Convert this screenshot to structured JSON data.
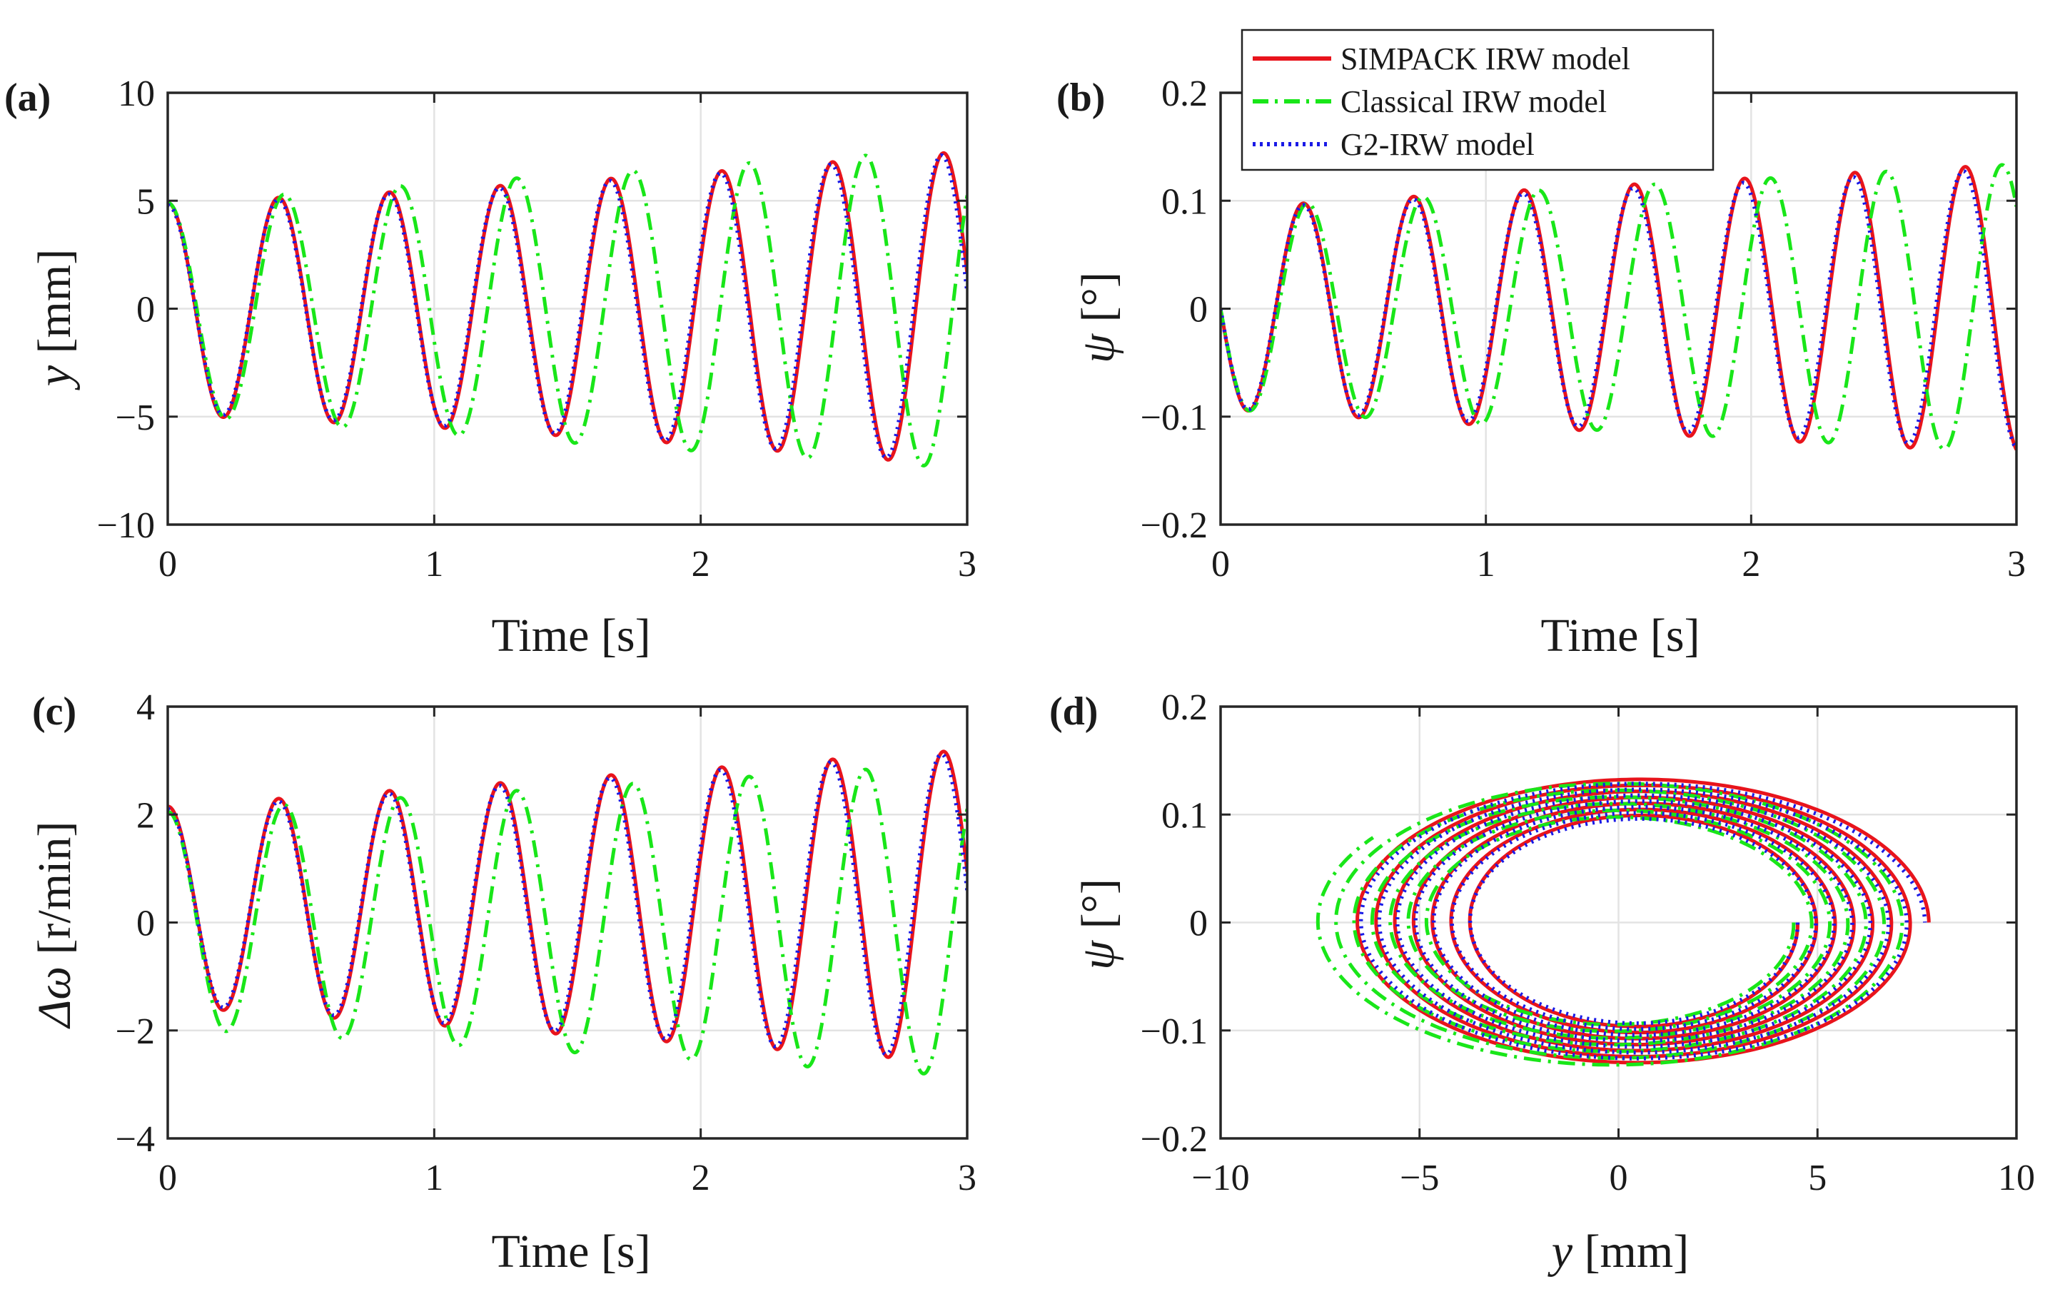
{
  "chart_data": [
    {
      "type": "line",
      "panel_label": "(a)",
      "xlabel": "Time [s]",
      "ylabel_italic": "y",
      "ylabel_unit": " [mm]",
      "xlim": [
        0,
        3
      ],
      "ylim": [
        -10,
        10
      ],
      "xticks": [
        0,
        1,
        2,
        3
      ],
      "yticks": [
        -10,
        -5,
        0,
        5,
        10
      ],
      "xtick_labels": [
        "0",
        "1",
        "2",
        "3"
      ],
      "ytick_labels": [
        "−10",
        "−5",
        "0",
        "5",
        "10"
      ],
      "grid": true,
      "series": [
        {
          "name": "SIMPACK IRW model",
          "style": "solid",
          "color": "#e8141c",
          "x_range": [
            0,
            3
          ],
          "phase": 1.5708,
          "omega": 15.11,
          "amp": [
            4.9,
            5.5,
            6.3,
            7.3
          ]
        },
        {
          "name": "Classical IRW model",
          "style": "dashdot",
          "color": "#19e619",
          "x_range": [
            0,
            3
          ],
          "phase": 1.5708,
          "omega": 14.4,
          "amp": [
            4.9,
            5.8,
            6.6,
            7.4
          ]
        },
        {
          "name": "G2-IRW model",
          "style": "dotted",
          "color": "#1a1ae6",
          "x_range": [
            0,
            3
          ],
          "phase": 1.5708,
          "omega": 15.15,
          "amp": [
            4.8,
            5.4,
            6.2,
            7.2
          ]
        }
      ]
    },
    {
      "type": "line",
      "panel_label": "(b)",
      "xlabel": "Time [s]",
      "ylabel_italic": "ψ",
      "ylabel_unit": " [°]",
      "xlim": [
        0,
        3
      ],
      "ylim": [
        -0.2,
        0.2
      ],
      "xticks": [
        0,
        1,
        2,
        3
      ],
      "yticks": [
        -0.2,
        -0.1,
        0,
        0.1,
        0.2
      ],
      "xtick_labels": [
        "0",
        "1",
        "2",
        "3"
      ],
      "ytick_labels": [
        "−0.2",
        "−0.1",
        "0",
        "0.1",
        "0.2"
      ],
      "grid": true,
      "legend": {
        "position": "top-right",
        "entries": [
          "SIMPACK IRW model",
          "Classical IRW model",
          "G2-IRW model"
        ]
      },
      "series": [
        {
          "name": "SIMPACK IRW model",
          "style": "solid",
          "color": "#e8141c",
          "x_range": [
            0,
            3
          ],
          "phase": 0,
          "omega": 15.11,
          "amp": [
            0.093,
            0.108,
            0.121,
            0.134
          ]
        },
        {
          "name": "Classical IRW model",
          "style": "dashdot",
          "color": "#19e619",
          "x_range": [
            0,
            3
          ],
          "phase": 0,
          "omega": 14.4,
          "amp": [
            0.093,
            0.107,
            0.12,
            0.134
          ]
        },
        {
          "name": "G2-IRW model",
          "style": "dotted",
          "color": "#1a1ae6",
          "x_range": [
            0,
            3
          ],
          "phase": 0,
          "omega": 15.15,
          "amp": [
            0.092,
            0.105,
            0.117,
            0.13
          ]
        }
      ]
    },
    {
      "type": "line",
      "panel_label": "(c)",
      "xlabel": "Time [s]",
      "ylabel_italic": "Δω",
      "ylabel_unit": " [r/min]",
      "xlim": [
        0,
        3
      ],
      "ylim": [
        -4,
        4
      ],
      "xticks": [
        0,
        1,
        2,
        3
      ],
      "yticks": [
        -4,
        -2,
        0,
        2,
        4
      ],
      "xtick_labels": [
        "0",
        "1",
        "2",
        "3"
      ],
      "ytick_labels": [
        "−4",
        "−2",
        "0",
        "2",
        "4"
      ],
      "grid": true,
      "series": [
        {
          "name": "SIMPACK IRW model",
          "style": "solid",
          "color": "#e8141c",
          "x_range": [
            0,
            3
          ],
          "phase": 1.5708,
          "omega": 15.11,
          "amp": [
            1.85,
            2.2,
            2.55,
            2.9
          ],
          "offset": 0.3
        },
        {
          "name": "Classical IRW model",
          "style": "dashdot",
          "color": "#19e619",
          "x_range": [
            0,
            3
          ],
          "phase": 1.5708,
          "omega": 14.4,
          "amp": [
            2.0,
            2.3,
            2.6,
            2.9
          ],
          "offset": 0.05
        },
        {
          "name": "G2-IRW model",
          "style": "dotted",
          "color": "#1a1ae6",
          "x_range": [
            0,
            3
          ],
          "phase": 1.5708,
          "omega": 15.15,
          "amp": [
            1.8,
            2.15,
            2.5,
            2.85
          ],
          "offset": 0.3
        }
      ]
    },
    {
      "type": "line",
      "subtype": "phase-portrait",
      "panel_label": "(d)",
      "xlabel_italic": "y",
      "xlabel_unit": " [mm]",
      "ylabel_italic": "ψ",
      "ylabel_unit": " [°]",
      "xlim": [
        -10,
        10
      ],
      "ylim": [
        -0.2,
        0.2
      ],
      "xticks": [
        -10,
        -5,
        0,
        5,
        10
      ],
      "yticks": [
        -0.2,
        -0.1,
        0,
        0.1,
        0.2
      ],
      "xtick_labels": [
        "−10",
        "−5",
        "0",
        "5",
        "10"
      ],
      "ytick_labels": [
        "−0.2",
        "−0.1",
        "0",
        "0.1",
        "0.2"
      ],
      "grid": true,
      "series": [
        {
          "name": "SIMPACK IRW model",
          "style": "solid",
          "color": "#e8141c",
          "loops": 7,
          "y_amp": [
            4.0,
            7.3
          ],
          "psi_amp": [
            0.095,
            0.134
          ],
          "y_center": 0.5
        },
        {
          "name": "Classical IRW model",
          "style": "dashdot",
          "color": "#19e619",
          "loops": 6.6,
          "y_amp": [
            4.5,
            7.5
          ],
          "psi_amp": [
            0.093,
            0.134
          ],
          "y_center": -0.1
        },
        {
          "name": "G2-IRW model",
          "style": "dotted",
          "color": "#1a1ae6",
          "loops": 7,
          "y_amp": [
            4.0,
            7.2
          ],
          "psi_amp": [
            0.092,
            0.13
          ],
          "y_center": 0.5
        }
      ]
    }
  ]
}
